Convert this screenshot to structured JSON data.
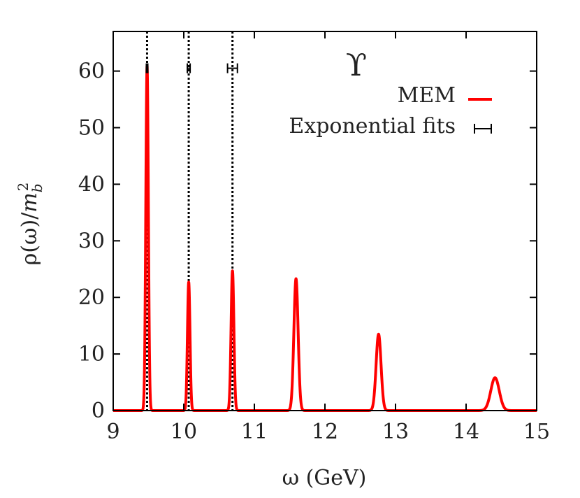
{
  "chart_data": {
    "type": "line",
    "title": "ϒ",
    "xlabel": "ω (GeV)",
    "ylabel": "ρ(ω)/m_b^2",
    "xlim": [
      9,
      15
    ],
    "ylim": [
      0,
      67
    ],
    "x_ticks": [
      9,
      10,
      11,
      12,
      13,
      14,
      15
    ],
    "y_ticks": [
      0,
      10,
      20,
      30,
      40,
      50,
      60
    ],
    "grid": false,
    "legend_position": "top-right",
    "colors": {
      "mem": "#ff0000",
      "fits": "#000000",
      "axis": "#000000"
    },
    "series": [
      {
        "name": "MEM",
        "kind": "peaks",
        "peaks": [
          {
            "center": 9.48,
            "height": 61.0,
            "width": 0.018
          },
          {
            "center": 10.07,
            "height": 22.7,
            "width": 0.018
          },
          {
            "center": 10.69,
            "height": 24.7,
            "width": 0.02
          },
          {
            "center": 11.59,
            "height": 23.3,
            "width": 0.03
          },
          {
            "center": 12.76,
            "height": 13.5,
            "width": 0.035
          },
          {
            "center": 14.41,
            "height": 5.8,
            "width": 0.06
          }
        ]
      },
      {
        "name": "Exponential fits",
        "kind": "errorbars",
        "y": 60.5,
        "points": [
          {
            "x": 9.48,
            "xerr": 0.01
          },
          {
            "x": 10.07,
            "xerr": 0.02
          },
          {
            "x": 10.69,
            "xerr": 0.07
          }
        ]
      }
    ]
  }
}
